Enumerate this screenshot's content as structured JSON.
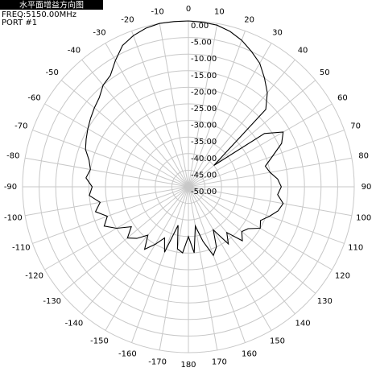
{
  "chart_data": {
    "type": "polar",
    "title": "水平面增益方向图",
    "freq_label": "FREQ:5150.00MHz",
    "port_label": "PORT #1",
    "color": "#000000",
    "rlim": [
      -50,
      0
    ],
    "rticks": [
      {
        "value": 0,
        "label": "0.00"
      },
      {
        "value": -5,
        "label": "-5.00"
      },
      {
        "value": -10,
        "label": "-10.00"
      },
      {
        "value": -15,
        "label": "-15.00"
      },
      {
        "value": -20,
        "label": "-20.00"
      },
      {
        "value": -25,
        "label": "-25.00"
      },
      {
        "value": -30,
        "label": "-30.00"
      },
      {
        "value": -35,
        "label": "-35.00"
      },
      {
        "value": -40,
        "label": "-40.00"
      },
      {
        "value": -45,
        "label": "-45.00"
      },
      {
        "value": -50,
        "label": "-50.00"
      }
    ],
    "angle_ticks": [
      0,
      10,
      20,
      30,
      40,
      50,
      60,
      70,
      80,
      90,
      100,
      110,
      120,
      130,
      140,
      150,
      160,
      170,
      180,
      -170,
      -160,
      -150,
      -140,
      -130,
      -120,
      -110,
      -100,
      -90,
      -80,
      -70,
      -60,
      -50,
      -40,
      -30,
      -20,
      -10
    ],
    "x": [
      -180,
      -175,
      -170,
      -165,
      -160,
      -155,
      -150,
      -145,
      -140,
      -135,
      -130,
      -125,
      -120,
      -115,
      -110,
      -105,
      -100,
      -95,
      -90,
      -85,
      -80,
      -75,
      -70,
      -65,
      -60,
      -55,
      -50,
      -45,
      -40,
      -35,
      -30,
      -25,
      -20,
      -15,
      -10,
      -5,
      0,
      5,
      10,
      15,
      20,
      25,
      30,
      35,
      40,
      45,
      50,
      55,
      60,
      65,
      70,
      75,
      80,
      85,
      90,
      95,
      100,
      105,
      110,
      115,
      120,
      125,
      130,
      135,
      140,
      145,
      150,
      155,
      160,
      165,
      170,
      175
    ],
    "values": [
      -35,
      -30,
      -31,
      -38,
      -29,
      -33,
      -30,
      -27,
      -31,
      -28,
      -26,
      -29,
      -25,
      -22,
      -24,
      -21,
      -23,
      -20,
      -21,
      -19,
      -20,
      -19,
      -17,
      -16,
      -15,
      -14,
      -13,
      -12,
      -10,
      -9,
      -6,
      -3,
      -1.5,
      -0.5,
      0,
      0,
      0,
      -0.2,
      -0.5,
      -1.5,
      -3,
      -5,
      -7,
      -10,
      -13,
      -17,
      -40,
      -22,
      -17,
      -19,
      -23,
      -26,
      -25,
      -23,
      -22,
      -23,
      -21,
      -22,
      -24,
      -26,
      -25,
      -28,
      -29,
      -27,
      -32,
      -29,
      -35,
      -30,
      -28,
      -33,
      -38,
      -30
    ]
  }
}
